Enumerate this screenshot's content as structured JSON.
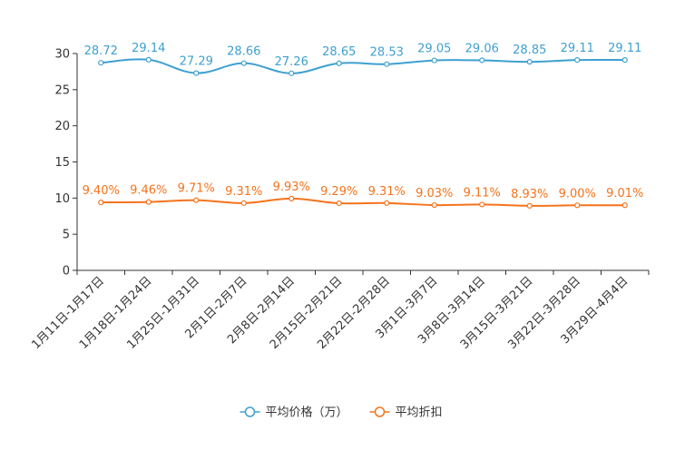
{
  "chart_data": {
    "type": "line",
    "title": "",
    "xlabel": "",
    "ylabel": "",
    "ylim": [
      0,
      30
    ],
    "yticks": [
      0,
      5,
      10,
      15,
      20,
      25,
      30
    ],
    "grid": false,
    "legend_position": "bottom-center",
    "categories": [
      "1月11日-1月17日",
      "1月18日-1月24日",
      "1月25日-1月31日",
      "2月1日-2月7日",
      "2月8日-2月14日",
      "2月15日-2月21日",
      "2月22日-2月28日",
      "3月1日-3月7日",
      "3月8日-3月14日",
      "3月15日-3月21日",
      "3月22日-3月28日",
      "3月29日-4月4日"
    ],
    "series": [
      {
        "name": "平均价格（万）",
        "color": "#3ea0d0",
        "values": [
          28.72,
          29.14,
          27.29,
          28.66,
          27.26,
          28.65,
          28.53,
          29.05,
          29.06,
          28.85,
          29.11,
          29.11
        ],
        "labels": [
          "28.72",
          "29.14",
          "27.29",
          "28.66",
          "27.26",
          "28.65",
          "28.53",
          "29.05",
          "29.06",
          "28.85",
          "29.11",
          "29.11"
        ]
      },
      {
        "name": "平均折扣",
        "color": "#f5731c",
        "values": [
          9.4,
          9.46,
          9.71,
          9.31,
          9.93,
          9.29,
          9.31,
          9.03,
          9.11,
          8.93,
          9.0,
          9.01
        ],
        "labels": [
          "9.40%",
          "9.46%",
          "9.71%",
          "9.31%",
          "9.93%",
          "9.29%",
          "9.31%",
          "9.03%",
          "9.11%",
          "8.93%",
          "9.00%",
          "9.01%"
        ]
      }
    ]
  }
}
